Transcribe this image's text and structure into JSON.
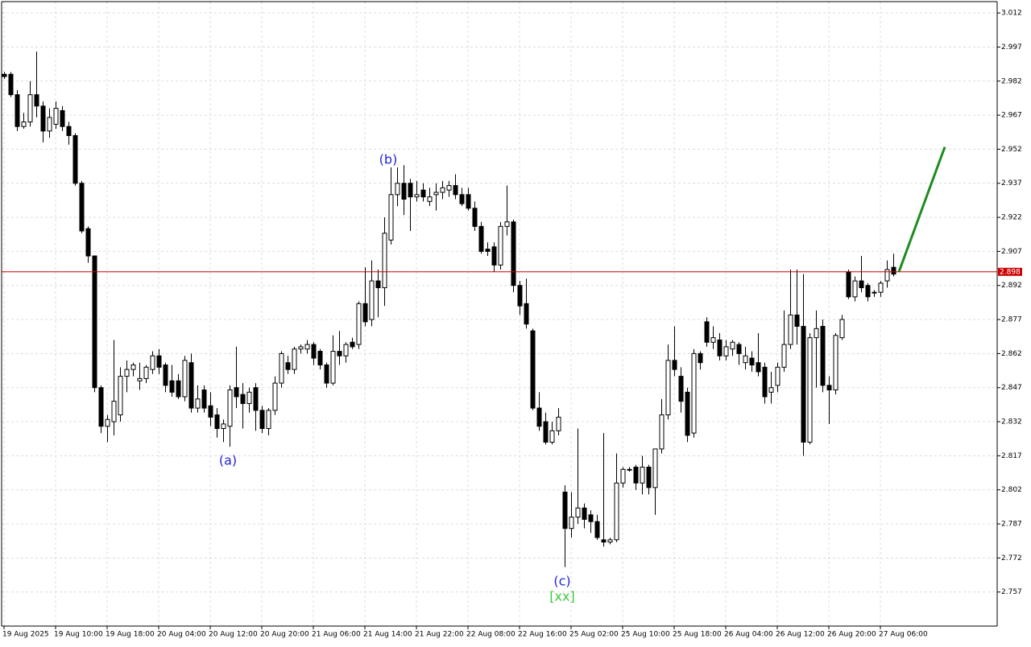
{
  "chart_data": {
    "type": "candlestick",
    "categories": [
      "19 Aug 2025",
      null,
      null,
      null,
      null,
      null,
      null,
      null,
      "19 Aug 10:00",
      null,
      null,
      null,
      null,
      null,
      null,
      null,
      "19 Aug 18:00",
      null,
      null,
      null,
      null,
      null,
      null,
      null,
      "20 Aug 04:00",
      null,
      null,
      null,
      null,
      null,
      null,
      null,
      "20 Aug 12:00",
      null,
      null,
      null,
      null,
      null,
      null,
      null,
      "20 Aug 20:00",
      null,
      null,
      null,
      null,
      null,
      null,
      null,
      "21 Aug 06:00",
      null,
      null,
      null,
      null,
      null,
      null,
      null,
      "21 Aug 14:00",
      null,
      null,
      null,
      null,
      null,
      null,
      null,
      "21 Aug 22:00",
      null,
      null,
      null,
      null,
      null,
      null,
      null,
      "22 Aug 08:00",
      null,
      null,
      null,
      null,
      null,
      null,
      null,
      "22 Aug 16:00",
      null,
      null,
      null,
      null,
      null,
      null,
      null,
      "25 Aug 02:00",
      null,
      null,
      null,
      null,
      null,
      null,
      null,
      "25 Aug 10:00",
      null,
      null,
      null,
      null,
      null,
      null,
      null,
      "25 Aug 18:00",
      null,
      null,
      null,
      null,
      null,
      null,
      null,
      "26 Aug 04:00",
      null,
      null,
      null,
      null,
      null,
      null,
      null,
      "26 Aug 12:00",
      null,
      null,
      null,
      null,
      null,
      null,
      null,
      "26 Aug 20:00",
      null,
      null,
      null,
      null,
      null,
      null,
      null,
      "27 Aug 06:00",
      null,
      null
    ],
    "open": [
      2.985,
      2.985,
      2.976,
      2.962,
      2.964,
      2.976,
      2.971,
      2.96,
      2.963,
      2.969,
      2.962,
      2.958,
      2.937,
      2.917,
      2.905,
      2.847,
      2.83,
      2.832,
      2.835,
      2.852,
      2.855,
      2.85,
      2.851,
      2.855,
      2.861,
      2.857,
      2.85,
      2.85,
      2.843,
      2.858,
      2.838,
      2.846,
      2.839,
      2.835,
      2.829,
      2.83,
      2.847,
      2.844,
      2.84,
      2.847,
      2.837,
      2.829,
      2.837,
      2.849,
      2.858,
      2.855,
      2.864,
      2.864,
      2.866,
      2.863,
      2.857,
      2.849,
      2.863,
      2.861,
      2.867,
      2.866,
      2.884,
      2.877,
      2.894,
      2.891,
      2.912,
      2.932,
      2.937,
      2.937,
      2.931,
      2.934,
      2.929,
      2.932,
      2.933,
      2.934,
      2.936,
      2.932,
      2.932,
      2.926,
      2.918,
      2.908,
      2.909,
      2.901,
      2.918,
      2.92,
      2.892,
      2.884,
      2.872,
      2.838,
      2.832,
      2.823,
      2.828,
      2.801,
      2.785,
      2.79,
      2.794,
      2.791,
      2.788,
      2.78,
      2.779,
      2.78,
      2.805,
      2.811,
      2.812,
      2.805,
      2.812,
      2.803,
      2.82,
      2.835,
      2.859,
      2.852,
      2.845,
      2.827,
      2.862,
      2.876,
      2.867,
      2.868,
      2.861,
      2.864,
      2.866,
      2.858,
      2.86,
      2.858,
      2.856,
      2.845,
      2.848,
      2.856,
      2.866,
      2.879,
      2.874,
      2.823,
      2.869,
      2.874,
      2.848,
      2.846,
      2.869,
      2.898,
      2.887,
      2.894,
      2.892,
      2.889,
      2.889,
      2.894,
      2.9
    ],
    "high": [
      2.986,
      2.986,
      2.978,
      2.968,
      2.982,
      2.995,
      2.973,
      2.97,
      2.973,
      2.971,
      2.964,
      2.959,
      2.938,
      2.918,
      2.905,
      2.848,
      2.835,
      2.868,
      2.856,
      2.859,
      2.858,
      2.858,
      2.857,
      2.863,
      2.864,
      2.858,
      2.857,
      2.853,
      2.861,
      2.862,
      2.848,
      2.848,
      2.845,
      2.838,
      2.833,
      2.848,
      2.865,
      2.849,
      2.847,
      2.849,
      2.839,
      2.838,
      2.852,
      2.863,
      2.861,
      2.865,
      2.866,
      2.868,
      2.867,
      2.864,
      2.858,
      2.87,
      2.872,
      2.867,
      2.869,
      2.885,
      2.9,
      2.903,
      2.899,
      2.922,
      2.944,
      2.944,
      2.945,
      2.939,
      2.938,
      2.937,
      2.935,
      2.937,
      2.938,
      2.938,
      2.941,
      2.935,
      2.935,
      2.929,
      2.92,
      2.911,
      2.911,
      2.92,
      2.936,
      2.921,
      2.894,
      2.895,
      2.873,
      2.845,
      2.836,
      2.832,
      2.838,
      2.804,
      2.801,
      2.829,
      2.796,
      2.793,
      2.791,
      2.827,
      2.781,
      2.818,
      2.812,
      2.812,
      2.813,
      2.817,
      2.813,
      2.82,
      2.842,
      2.866,
      2.874,
      2.856,
      2.847,
      2.864,
      2.863,
      2.878,
      2.874,
      2.871,
      2.868,
      2.868,
      2.867,
      2.865,
      2.863,
      2.871,
      2.858,
      2.854,
      2.858,
      2.881,
      2.899,
      2.899,
      2.897,
      2.871,
      2.881,
      2.877,
      2.852,
      2.871,
      2.879,
      2.899,
      2.896,
      2.905,
      2.893,
      2.89,
      2.894,
      2.903,
      2.906
    ],
    "low": [
      2.983,
      2.975,
      2.96,
      2.961,
      2.962,
      2.966,
      2.955,
      2.957,
      2.961,
      2.96,
      2.954,
      2.936,
      2.915,
      2.902,
      2.845,
      2.827,
      2.823,
      2.826,
      2.832,
      2.845,
      2.852,
      2.846,
      2.849,
      2.853,
      2.853,
      2.845,
      2.843,
      2.842,
      2.841,
      2.836,
      2.836,
      2.836,
      2.83,
      2.825,
      2.823,
      2.821,
      2.838,
      2.829,
      2.836,
      2.828,
      2.827,
      2.826,
      2.835,
      2.847,
      2.853,
      2.853,
      2.862,
      2.862,
      2.857,
      2.855,
      2.847,
      2.848,
      2.857,
      2.858,
      2.864,
      2.864,
      2.874,
      2.874,
      2.878,
      2.883,
      2.91,
      2.927,
      2.923,
      2.916,
      2.929,
      2.929,
      2.927,
      2.925,
      2.93,
      2.931,
      2.93,
      2.927,
      2.925,
      2.916,
      2.906,
      2.905,
      2.898,
      2.899,
      2.914,
      2.889,
      2.879,
      2.873,
      2.837,
      2.828,
      2.822,
      2.822,
      2.826,
      2.768,
      2.781,
      2.787,
      2.785,
      2.783,
      2.78,
      2.777,
      2.778,
      2.779,
      2.803,
      2.81,
      2.802,
      2.8,
      2.8,
      2.791,
      2.818,
      2.833,
      2.852,
      2.836,
      2.823,
      2.825,
      2.855,
      2.865,
      2.864,
      2.859,
      2.859,
      2.861,
      2.857,
      2.855,
      2.854,
      2.852,
      2.84,
      2.84,
      2.845,
      2.854,
      2.864,
      2.866,
      2.817,
      2.822,
      2.847,
      2.845,
      2.831,
      2.844,
      2.868,
      2.886,
      2.885,
      2.889,
      2.885,
      2.887,
      2.887,
      2.891,
      2.896
    ],
    "close": [
      2.984,
      2.976,
      2.962,
      2.964,
      2.976,
      2.971,
      2.96,
      2.966,
      2.97,
      2.962,
      2.958,
      2.937,
      2.916,
      2.905,
      2.847,
      2.83,
      2.833,
      2.841,
      2.852,
      2.855,
      2.857,
      2.851,
      2.856,
      2.861,
      2.856,
      2.848,
      2.845,
      2.843,
      2.859,
      2.838,
      2.842,
      2.838,
      2.834,
      2.829,
      2.831,
      2.846,
      2.843,
      2.84,
      2.845,
      2.837,
      2.829,
      2.837,
      2.849,
      2.862,
      2.855,
      2.864,
      2.865,
      2.866,
      2.86,
      2.857,
      2.849,
      2.863,
      2.861,
      2.866,
      2.865,
      2.884,
      2.876,
      2.894,
      2.891,
      2.915,
      2.932,
      2.937,
      2.93,
      2.931,
      2.932,
      2.931,
      2.931,
      2.933,
      2.935,
      2.936,
      2.932,
      2.928,
      2.926,
      2.918,
      2.907,
      2.907,
      2.901,
      2.918,
      2.92,
      2.892,
      2.883,
      2.875,
      2.838,
      2.83,
      2.823,
      2.828,
      2.834,
      2.785,
      2.79,
      2.794,
      2.789,
      2.788,
      2.781,
      2.779,
      2.78,
      2.805,
      2.811,
      2.811,
      2.805,
      2.812,
      2.803,
      2.82,
      2.835,
      2.859,
      2.855,
      2.841,
      2.826,
      2.862,
      2.858,
      2.867,
      2.869,
      2.861,
      2.865,
      2.867,
      2.862,
      2.861,
      2.857,
      2.854,
      2.843,
      2.847,
      2.856,
      2.866,
      2.879,
      2.874,
      2.823,
      2.869,
      2.873,
      2.848,
      2.846,
      2.87,
      2.877,
      2.887,
      2.894,
      2.891,
      2.887,
      2.889,
      2.893,
      2.899,
      2.897
    ],
    "ylim": [
      2.742,
      3.017
    ],
    "yticks": [
      3.012,
      2.997,
      2.982,
      2.967,
      2.952,
      2.937,
      2.922,
      2.907,
      2.892,
      2.877,
      2.862,
      2.847,
      2.832,
      2.817,
      2.802,
      2.787,
      2.772,
      2.757
    ],
    "grid": true,
    "up_color": "#ffffff",
    "down_color": "#000000",
    "current_price": {
      "value": 2.898,
      "color": "#cc0000"
    },
    "projection": {
      "values": [
        2.898,
        2.953
      ],
      "color": "#1e8c1e"
    },
    "annotations": [
      {
        "text": "(a)",
        "color": "#2323e0"
      },
      {
        "text": "(b)",
        "color": "#2323e0"
      },
      {
        "text": "(c)",
        "color": "#2323e0"
      },
      {
        "text": "[xx]",
        "color": "#3cc83c"
      }
    ]
  }
}
